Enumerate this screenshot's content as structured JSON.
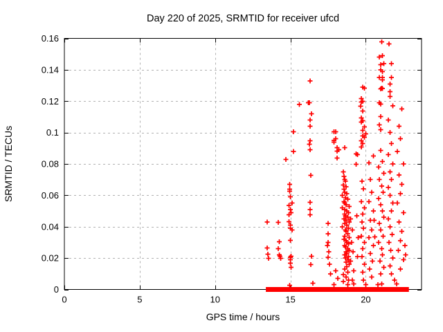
{
  "colors": {
    "marker": "#ff0000",
    "grid": "#b0b0b0",
    "axis": "#000000",
    "background": "#ffffff",
    "text": "#000000"
  },
  "chart_data": {
    "type": "scatter",
    "title": "Day 220 of 2025, SRMTID for receiver ufcd",
    "xlabel": "GPS time / hours",
    "ylabel": "SRMTID / TECUs",
    "xlim": [
      0,
      23.7
    ],
    "ylim": [
      0,
      0.16
    ],
    "xticks": [
      0,
      5,
      10,
      15,
      20
    ],
    "xtick_labels": [
      "0",
      "5",
      "10",
      "15",
      "20"
    ],
    "yticks": [
      0,
      0.02,
      0.04,
      0.06,
      0.08,
      0.1,
      0.12,
      0.14,
      0.16
    ],
    "ytick_labels": [
      "0",
      "0.02",
      "0.04",
      "0.06",
      "0.08",
      "0.1",
      "0.12",
      "0.14",
      "0.16"
    ],
    "grid": true,
    "legend": "none",
    "marker": "plus",
    "zero_band_segments": [
      [
        13.53,
        14.15
      ],
      [
        14.2,
        14.86
      ],
      [
        15.09,
        15.62
      ],
      [
        15.68,
        16.19
      ],
      [
        16.28,
        16.95
      ],
      [
        17.0,
        17.84
      ],
      [
        18.12,
        18.6
      ],
      [
        18.66,
        19.04
      ],
      [
        19.27,
        19.59
      ],
      [
        19.77,
        20.05
      ],
      [
        20.09,
        20.57
      ],
      [
        20.62,
        21.24
      ],
      [
        21.33,
        21.65
      ],
      [
        21.88,
        22.25
      ],
      [
        22.3,
        22.7
      ]
    ],
    "series": [
      {
        "name": "SRMTID",
        "color": "#ff0000",
        "points": [
          [
            13.45,
            0.043
          ],
          [
            13.45,
            0.0265
          ],
          [
            13.5,
            0.0225
          ],
          [
            13.55,
            0.0198
          ],
          [
            14.2,
            0.0427
          ],
          [
            14.25,
            0.0304
          ],
          [
            14.2,
            0.026
          ],
          [
            14.25,
            0.022
          ],
          [
            14.3,
            0.0212
          ],
          [
            14.35,
            0.0198
          ],
          [
            14.7,
            0.0829
          ],
          [
            14.95,
            0.067
          ],
          [
            14.95,
            0.064
          ],
          [
            14.95,
            0.0626
          ],
          [
            15.0,
            0.059
          ],
          [
            15.1,
            0.055
          ],
          [
            14.9,
            0.0535
          ],
          [
            15.0,
            0.051
          ],
          [
            15.05,
            0.049
          ],
          [
            14.9,
            0.0475
          ],
          [
            15.2,
            0.1005
          ],
          [
            15.2,
            0.088
          ],
          [
            14.9,
            0.0432
          ],
          [
            15.0,
            0.041
          ],
          [
            15.0,
            0.039
          ],
          [
            15.1,
            0.038
          ],
          [
            15.0,
            0.0313
          ],
          [
            15.05,
            0.0212
          ],
          [
            15.0,
            0.0205
          ],
          [
            15.0,
            0.019
          ],
          [
            15.0,
            0.0168
          ],
          [
            15.05,
            0.014
          ],
          [
            14.95,
            0.0027
          ],
          [
            15.0,
            0.0009
          ],
          [
            15.6,
            0.118
          ],
          [
            16.3,
            0.133
          ],
          [
            16.25,
            0.119
          ],
          [
            16.2,
            0.119
          ],
          [
            16.4,
            0.112
          ],
          [
            16.3,
            0.108
          ],
          [
            16.3,
            0.104
          ],
          [
            16.3,
            0.0947
          ],
          [
            16.25,
            0.0925
          ],
          [
            16.3,
            0.089
          ],
          [
            16.35,
            0.0727
          ],
          [
            16.3,
            0.0555
          ],
          [
            16.3,
            0.051
          ],
          [
            16.3,
            0.0476
          ],
          [
            16.4,
            0.0212
          ],
          [
            16.35,
            0.0159
          ],
          [
            16.5,
            0.004
          ],
          [
            17.9,
            0.1005
          ],
          [
            18.0,
            0.1005
          ],
          [
            18.0,
            0.0961
          ],
          [
            17.9,
            0.095
          ],
          [
            17.9,
            0.0939
          ],
          [
            18.1,
            0.0903
          ],
          [
            18.2,
            0.089
          ],
          [
            18.1,
            0.0881
          ],
          [
            18.1,
            0.0837
          ],
          [
            17.5,
            0.042
          ],
          [
            17.5,
            0.0355
          ],
          [
            17.5,
            0.03
          ],
          [
            17.55,
            0.024
          ],
          [
            17.5,
            0.0205
          ],
          [
            17.6,
            0.016
          ],
          [
            17.65,
            0.01
          ],
          [
            17.9,
            0.003
          ],
          [
            18.0,
            0.012
          ],
          [
            18.15,
            0.007
          ],
          [
            17.45,
            0.028
          ],
          [
            18.6,
            0.0903
          ],
          [
            18.5,
            0.075
          ],
          [
            18.55,
            0.072
          ],
          [
            18.6,
            0.07
          ],
          [
            18.65,
            0.069
          ],
          [
            18.5,
            0.0665
          ],
          [
            18.7,
            0.0655
          ],
          [
            18.55,
            0.064
          ],
          [
            18.6,
            0.062
          ],
          [
            18.75,
            0.061
          ],
          [
            18.45,
            0.06
          ],
          [
            18.65,
            0.0585
          ],
          [
            18.8,
            0.0575
          ],
          [
            18.55,
            0.056
          ],
          [
            18.6,
            0.055
          ],
          [
            18.7,
            0.054
          ],
          [
            18.9,
            0.053
          ],
          [
            18.45,
            0.052
          ],
          [
            18.6,
            0.051
          ],
          [
            18.75,
            0.05
          ],
          [
            18.85,
            0.049
          ],
          [
            18.6,
            0.048
          ],
          [
            18.65,
            0.047
          ],
          [
            18.8,
            0.046
          ],
          [
            18.55,
            0.045
          ],
          [
            18.7,
            0.044
          ],
          [
            18.9,
            0.043
          ],
          [
            18.6,
            0.042
          ],
          [
            18.75,
            0.041
          ],
          [
            18.45,
            0.04
          ],
          [
            18.85,
            0.039
          ],
          [
            18.65,
            0.038
          ],
          [
            18.7,
            0.037
          ],
          [
            18.8,
            0.0355
          ],
          [
            18.6,
            0.034
          ],
          [
            18.9,
            0.033
          ],
          [
            18.55,
            0.032
          ],
          [
            18.7,
            0.031
          ],
          [
            18.75,
            0.03
          ],
          [
            18.85,
            0.029
          ],
          [
            18.6,
            0.028
          ],
          [
            18.65,
            0.027
          ],
          [
            18.8,
            0.026
          ],
          [
            18.9,
            0.025
          ],
          [
            18.7,
            0.024
          ],
          [
            18.75,
            0.023
          ],
          [
            18.6,
            0.022
          ],
          [
            18.85,
            0.021
          ],
          [
            18.65,
            0.02
          ],
          [
            18.8,
            0.019
          ],
          [
            18.7,
            0.0175
          ],
          [
            18.9,
            0.016
          ],
          [
            18.75,
            0.0145
          ],
          [
            18.6,
            0.013
          ],
          [
            18.8,
            0.011
          ],
          [
            18.5,
            0.0095
          ],
          [
            18.7,
            0.008
          ],
          [
            18.85,
            0.006
          ],
          [
            18.5,
            0.005
          ],
          [
            18.8,
            0.003
          ],
          [
            19.0,
            0.045
          ],
          [
            19.1,
            0.038
          ],
          [
            19.05,
            0.03
          ],
          [
            19.15,
            0.024
          ],
          [
            19.0,
            0.018
          ],
          [
            19.2,
            0.012
          ],
          [
            19.1,
            0.006
          ],
          [
            19.2,
            0.0035
          ],
          [
            19.35,
            0.0864
          ],
          [
            19.45,
            0.0859
          ],
          [
            19.35,
            0.0798
          ],
          [
            19.4,
            0.047
          ],
          [
            19.5,
            0.033
          ],
          [
            19.45,
            0.021
          ],
          [
            19.9,
            0.1283
          ],
          [
            19.8,
            0.129
          ],
          [
            19.8,
            0.12
          ],
          [
            19.7,
            0.1216
          ],
          [
            19.7,
            0.1194
          ],
          [
            19.65,
            0.1168
          ],
          [
            19.8,
            0.1137
          ],
          [
            19.7,
            0.1093
          ],
          [
            19.8,
            0.1075
          ],
          [
            19.7,
            0.1066
          ],
          [
            19.9,
            0.1036
          ],
          [
            19.8,
            0.1014
          ],
          [
            20.0,
            0.0991
          ],
          [
            19.9,
            0.0969
          ],
          [
            19.8,
            0.0978
          ],
          [
            19.7,
            0.0947
          ],
          [
            19.8,
            0.093
          ],
          [
            19.7,
            0.0908
          ],
          [
            19.75,
            0.0689
          ],
          [
            19.85,
            0.0641
          ],
          [
            19.7,
            0.056
          ],
          [
            19.9,
            0.052
          ],
          [
            19.8,
            0.048
          ],
          [
            19.75,
            0.043
          ],
          [
            19.85,
            0.039
          ],
          [
            19.7,
            0.034
          ],
          [
            19.9,
            0.03
          ],
          [
            19.8,
            0.026
          ],
          [
            19.75,
            0.021
          ],
          [
            19.9,
            0.016
          ],
          [
            19.8,
            0.011
          ],
          [
            19.85,
            0.006
          ],
          [
            20.2,
            0.0806
          ],
          [
            20.5,
            0.085
          ],
          [
            20.3,
            0.07
          ],
          [
            20.4,
            0.062
          ],
          [
            20.2,
            0.056
          ],
          [
            20.5,
            0.05
          ],
          [
            20.3,
            0.044
          ],
          [
            20.4,
            0.038
          ],
          [
            20.2,
            0.033
          ],
          [
            20.5,
            0.028
          ],
          [
            20.3,
            0.023
          ],
          [
            20.45,
            0.018
          ],
          [
            20.25,
            0.013
          ],
          [
            20.4,
            0.008
          ],
          [
            20.0,
            0.003
          ],
          [
            20.55,
            0.044
          ],
          [
            20.6,
            0.0335
          ],
          [
            21.05,
            0.1578
          ],
          [
            21.1,
            0.149
          ],
          [
            20.9,
            0.148
          ],
          [
            21.2,
            0.144
          ],
          [
            21.0,
            0.1432
          ],
          [
            21.1,
            0.1388
          ],
          [
            21.0,
            0.14
          ],
          [
            21.1,
            0.135
          ],
          [
            20.9,
            0.135
          ],
          [
            21.1,
            0.1335
          ],
          [
            21.05,
            0.1283
          ],
          [
            21.0,
            0.1278
          ],
          [
            21.1,
            0.128
          ],
          [
            20.9,
            0.119
          ],
          [
            21.0,
            0.1181
          ],
          [
            21.0,
            0.1102
          ],
          [
            20.9,
            0.1049
          ],
          [
            21.0,
            0.1018
          ],
          [
            21.0,
            0.0886
          ],
          [
            21.1,
            0.0815
          ],
          [
            20.85,
            0.078
          ],
          [
            21.2,
            0.074
          ],
          [
            20.9,
            0.07
          ],
          [
            21.05,
            0.066
          ],
          [
            21.15,
            0.062
          ],
          [
            20.85,
            0.058
          ],
          [
            21.0,
            0.054
          ],
          [
            21.1,
            0.05
          ],
          [
            21.2,
            0.046
          ],
          [
            20.9,
            0.042
          ],
          [
            21.0,
            0.038
          ],
          [
            21.15,
            0.034
          ],
          [
            20.85,
            0.03
          ],
          [
            21.05,
            0.026
          ],
          [
            21.1,
            0.022
          ],
          [
            20.95,
            0.018
          ],
          [
            21.2,
            0.014
          ],
          [
            21.0,
            0.01
          ],
          [
            20.8,
            0.003
          ],
          [
            21.05,
            0.0035
          ],
          [
            21.55,
            0.1565
          ],
          [
            21.7,
            0.144
          ],
          [
            21.7,
            0.135
          ],
          [
            21.6,
            0.131
          ],
          [
            21.6,
            0.126
          ],
          [
            21.6,
            0.123
          ],
          [
            21.8,
            0.117
          ],
          [
            21.5,
            0.108
          ],
          [
            21.6,
            0.1
          ],
          [
            21.7,
            0.093
          ],
          [
            21.5,
            0.086
          ],
          [
            21.8,
            0.08
          ],
          [
            21.6,
            0.075
          ],
          [
            21.7,
            0.07
          ],
          [
            21.5,
            0.065
          ],
          [
            21.6,
            0.06
          ],
          [
            21.8,
            0.055
          ],
          [
            21.7,
            0.05
          ],
          [
            21.5,
            0.045
          ],
          [
            21.6,
            0.04
          ],
          [
            21.75,
            0.035
          ],
          [
            21.55,
            0.03
          ],
          [
            21.65,
            0.025
          ],
          [
            21.8,
            0.02
          ],
          [
            21.6,
            0.015
          ],
          [
            21.7,
            0.01
          ],
          [
            21.9,
            0.006
          ],
          [
            22.4,
            0.115
          ],
          [
            22.2,
            0.104
          ],
          [
            22.3,
            0.096
          ],
          [
            22.1,
            0.088
          ],
          [
            22.5,
            0.08
          ],
          [
            22.2,
            0.073
          ],
          [
            22.4,
            0.067
          ],
          [
            22.3,
            0.061
          ],
          [
            22.1,
            0.055
          ],
          [
            22.5,
            0.049
          ],
          [
            22.2,
            0.043
          ],
          [
            22.4,
            0.037
          ],
          [
            22.3,
            0.031
          ],
          [
            22.15,
            0.025
          ],
          [
            22.5,
            0.019
          ],
          [
            22.3,
            0.013
          ],
          [
            22.05,
            0.0035
          ],
          [
            22.6,
            0.028
          ],
          [
            22.65,
            0.022
          ]
        ]
      }
    ]
  }
}
